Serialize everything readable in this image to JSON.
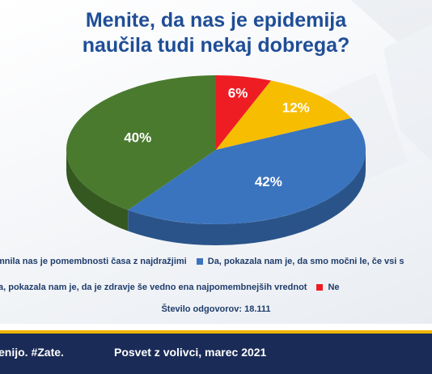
{
  "title_line1": "Menite, da nas je epidemija",
  "title_line2": "naučila tudi nekaj dobrega?",
  "chart_data": {
    "type": "pie",
    "title": "Menite, da nas je epidemija naučila tudi nekaj dobrega?",
    "slices": [
      {
        "label": "…pomnila nas je pomembnosti časa z najdražjimi",
        "value": 40,
        "display": "40%",
        "color": "#4a7a2e"
      },
      {
        "label": "Da, pokazala nam je, da smo močni le, če vsi s…",
        "value": 42,
        "display": "42%",
        "color": "#3b74be"
      },
      {
        "label": "…a, pokazala nam je, da je zdravje še vedno ena najpomembnejših vrednot",
        "value": 12,
        "display": "12%",
        "color": "#f7bd00"
      },
      {
        "label": "Ne",
        "value": 6,
        "display": "6%",
        "color": "#ee1d23"
      }
    ]
  },
  "legend": {
    "row1_a": "mnila nas je pomembnosti časa z najdražjimi",
    "row1_b": "Da, pokazala nam je, da smo močni le, če vsi s",
    "row2_a": "a, pokazala nam je, da je zdravje še vedno ena najpomembnejših vrednot",
    "row2_b": "Ne"
  },
  "respondents": "Število odgovorov: 18.111",
  "footer": {
    "left": "enijo. #Zate.",
    "right": "Posvet z volivci, marec 2021"
  },
  "colors": {
    "green": "#4a7a2e",
    "blue": "#3b74be",
    "yellow": "#f7bd00",
    "red": "#ee1d23",
    "navy": "#1a2b57"
  }
}
